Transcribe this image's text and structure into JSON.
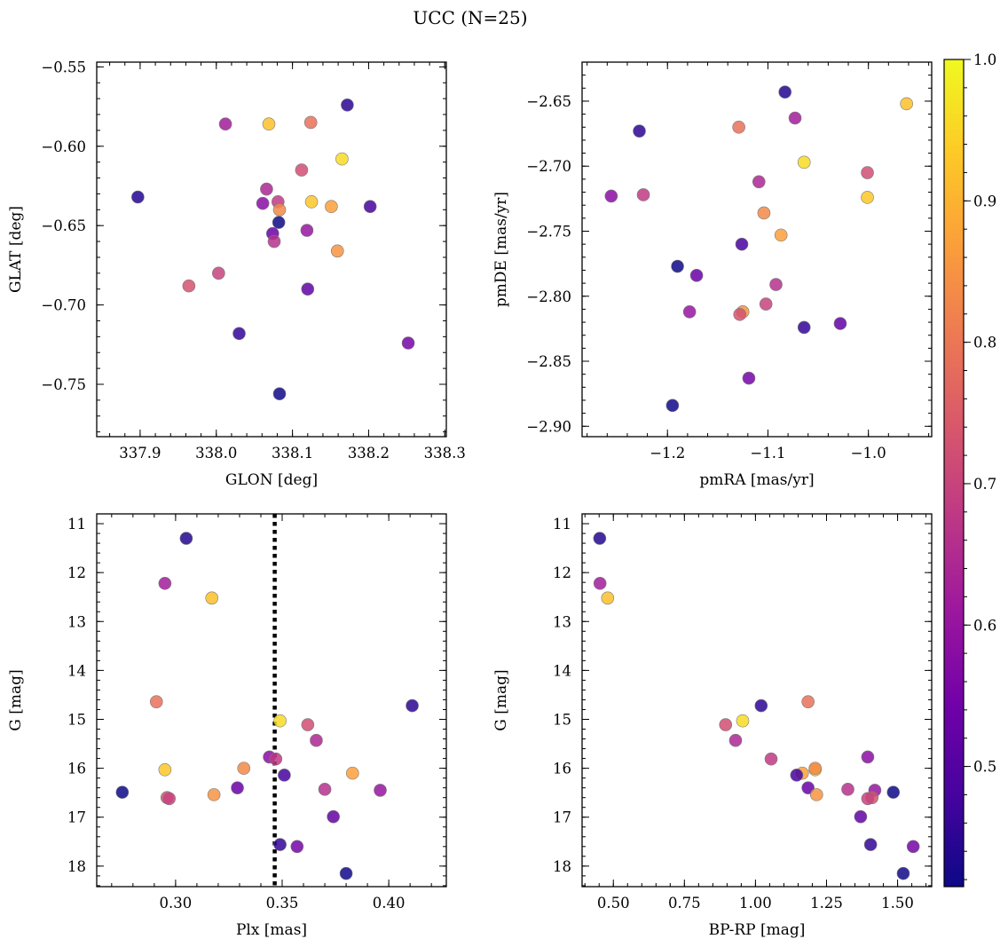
{
  "figure": {
    "title": "UCC (N=25)"
  },
  "chart_data": [
    {
      "type": "scatter",
      "id": "glon_glat",
      "xlabel": "GLON [deg]",
      "ylabel": "GLAT [deg]",
      "xlim": [
        337.843,
        338.302
      ],
      "ylim": [
        -0.783,
        -0.547
      ],
      "y_inverted": false,
      "xticks": [
        337.9,
        338.0,
        338.1,
        338.2,
        338.3
      ],
      "xtick_labels": [
        "337.9",
        "338.0",
        "338.1",
        "338.2",
        "338.3"
      ],
      "yticks": [
        -0.55,
        -0.6,
        -0.65,
        -0.7,
        -0.75
      ],
      "ytick_labels": [
        "−0.55",
        "−0.60",
        "−0.65",
        "−0.70",
        "−0.75"
      ],
      "x": [
        337.897,
        338.012,
        338.069,
        338.124,
        338.172,
        338.165,
        338.112,
        338.066,
        338.061,
        338.081,
        338.125,
        338.083,
        338.151,
        338.202,
        338.082,
        338.074,
        338.076,
        338.119,
        338.159,
        337.964,
        338.003,
        338.12,
        338.03,
        338.252,
        338.083
      ],
      "y": [
        -0.632,
        -0.586,
        -0.586,
        -0.585,
        -0.574,
        -0.608,
        -0.615,
        -0.627,
        -0.636,
        -0.635,
        -0.635,
        -0.64,
        -0.638,
        -0.638,
        -0.648,
        -0.655,
        -0.66,
        -0.653,
        -0.666,
        -0.688,
        -0.68,
        -0.69,
        -0.718,
        -0.724,
        -0.756
      ]
    },
    {
      "type": "scatter",
      "id": "pm",
      "xlabel": "pmRA [mas/yr]",
      "ylabel": "pmDE [mas/yr]",
      "xlim": [
        -1.285,
        -0.937
      ],
      "ylim": [
        -2.908,
        -2.62
      ],
      "y_inverted": false,
      "xticks": [
        -1.2,
        -1.1,
        -1.0
      ],
      "xtick_labels": [
        "−1.2",
        "−1.1",
        "−1.0"
      ],
      "yticks": [
        -2.65,
        -2.7,
        -2.75,
        -2.8,
        -2.85,
        -2.9
      ],
      "ytick_labels": [
        "−2.65",
        "−2.70",
        "−2.75",
        "−2.80",
        "−2.85",
        "−2.90"
      ],
      "x": [
        -1.083,
        -1.073,
        -0.962,
        -1.129,
        -1.228,
        -1.064,
        -1.001,
        -1.109,
        -1.256,
        -1.224,
        -1.001,
        -1.104,
        -1.087,
        -1.126,
        -1.19,
        -1.171,
        -1.092,
        -1.178,
        -1.125,
        -1.128,
        -1.102,
        -1.028,
        -1.064,
        -1.119,
        -1.195
      ],
      "y": [
        -2.643,
        -2.663,
        -2.652,
        -2.67,
        -2.673,
        -2.697,
        -2.705,
        -2.712,
        -2.723,
        -2.722,
        -2.724,
        -2.736,
        -2.753,
        -2.76,
        -2.777,
        -2.784,
        -2.791,
        -2.812,
        -2.812,
        -2.814,
        -2.806,
        -2.821,
        -2.824,
        -2.863,
        -2.884
      ]
    },
    {
      "type": "scatter",
      "id": "plx_g",
      "xlabel": "Plx [mas]",
      "ylabel": "G [mag]",
      "xlim": [
        0.263,
        0.427
      ],
      "ylim": [
        10.8,
        18.42
      ],
      "y_inverted": true,
      "vline": {
        "x": 0.3465,
        "style": "dotted"
      },
      "xticks": [
        0.3,
        0.35,
        0.4
      ],
      "xtick_labels": [
        "0.30",
        "0.35",
        "0.40"
      ],
      "yticks": [
        11,
        12,
        13,
        14,
        15,
        16,
        17,
        18
      ],
      "ytick_labels": [
        "11",
        "12",
        "13",
        "14",
        "15",
        "16",
        "17",
        "18"
      ],
      "x": [
        0.305,
        0.295,
        0.317,
        0.291,
        0.411,
        0.349,
        0.362,
        0.366,
        0.344,
        0.347,
        0.295,
        0.332,
        0.383,
        0.351,
        0.275,
        0.329,
        0.37,
        0.396,
        0.318,
        0.296,
        0.297,
        0.374,
        0.349,
        0.357,
        0.38
      ],
      "y": [
        11.3,
        12.22,
        12.52,
        14.64,
        14.72,
        15.03,
        15.11,
        15.43,
        15.77,
        15.81,
        16.03,
        16.0,
        16.1,
        16.14,
        16.49,
        16.4,
        16.43,
        16.45,
        16.54,
        16.6,
        16.62,
        16.99,
        17.56,
        17.6,
        18.15
      ]
    },
    {
      "type": "scatter",
      "id": "cmd",
      "xlabel": "BP-RP [mag]",
      "ylabel": "G [mag]",
      "xlim": [
        0.39,
        1.62
      ],
      "ylim": [
        10.8,
        18.42
      ],
      "y_inverted": true,
      "xticks": [
        0.5,
        0.75,
        1.0,
        1.25,
        1.5
      ],
      "xtick_labels": [
        "0.50",
        "0.75",
        "1.00",
        "1.25",
        "1.50"
      ],
      "yticks": [
        11,
        12,
        13,
        14,
        15,
        16,
        17,
        18
      ],
      "ytick_labels": [
        "11",
        "12",
        "13",
        "14",
        "15",
        "16",
        "17",
        "18"
      ],
      "x": [
        0.452,
        0.453,
        0.48,
        1.185,
        1.02,
        0.955,
        0.895,
        0.93,
        1.395,
        1.055,
        1.21,
        1.21,
        1.165,
        1.145,
        1.485,
        1.185,
        1.325,
        1.42,
        1.215,
        1.41,
        1.395,
        1.37,
        1.405,
        1.555,
        1.52
      ],
      "y": [
        11.3,
        12.22,
        12.52,
        14.64,
        14.72,
        15.03,
        15.11,
        15.43,
        15.77,
        15.81,
        16.03,
        16.0,
        16.1,
        16.14,
        16.49,
        16.4,
        16.43,
        16.45,
        16.54,
        16.6,
        16.62,
        16.99,
        17.56,
        17.6,
        18.15
      ]
    }
  ],
  "colorbar": {
    "colormap": "plasma",
    "vmin": 0.415,
    "vmax": 1.0,
    "ticks": [
      0.5,
      0.6,
      0.7,
      0.8,
      0.9,
      1.0
    ],
    "tick_labels": [
      "0.5",
      "0.6",
      "0.7",
      "0.8",
      "0.9",
      "1.0"
    ],
    "stops": [
      "#0d0887",
      "#46039f",
      "#7201a8",
      "#9c179e",
      "#bd3786",
      "#d8576b",
      "#ed7953",
      "#fb9f3a",
      "#fdca26",
      "#f0f921"
    ]
  },
  "member_probabilities": [
    0.44,
    0.62,
    0.92,
    0.79,
    0.45,
    0.96,
    0.72,
    0.64,
    0.58,
    0.68,
    0.93,
    0.83,
    0.87,
    0.48,
    0.41,
    0.53,
    0.66,
    0.6,
    0.85,
    0.73,
    0.7,
    0.52,
    0.46,
    0.55,
    0.42
  ]
}
